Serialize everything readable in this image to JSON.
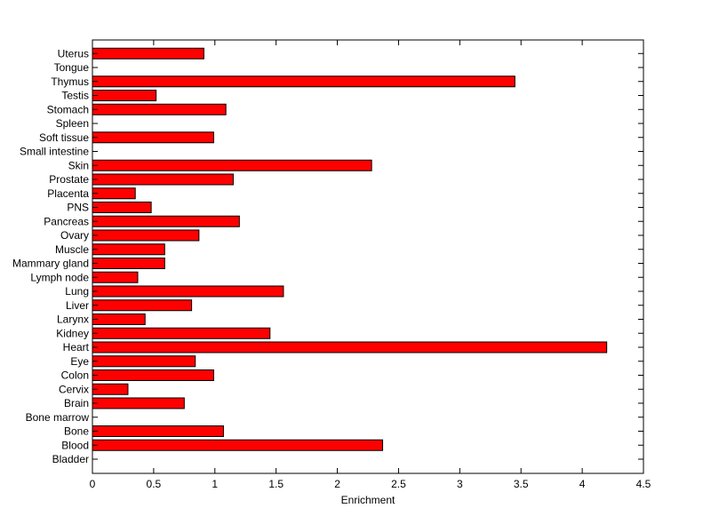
{
  "chart_data": {
    "type": "bar",
    "orientation": "horizontal",
    "title": "",
    "xlabel": "Enrichment",
    "ylabel": "",
    "xlim": [
      0,
      4.5
    ],
    "xticks": [
      "0",
      "0.5",
      "1",
      "1.5",
      "2",
      "2.5",
      "3",
      "3.5",
      "4",
      "4.5"
    ],
    "grid": false,
    "legend": "none",
    "bar_color": "#ff0000",
    "edge_color": "#000000",
    "categories": [
      "Bladder",
      "Blood",
      "Bone",
      "Bone marrow",
      "Brain",
      "Cervix",
      "Colon",
      "Eye",
      "Heart",
      "Kidney",
      "Larynx",
      "Liver",
      "Lung",
      "Lymph node",
      "Mammary gland",
      "Muscle",
      "Ovary",
      "Pancreas",
      "PNS",
      "Placenta",
      "Prostate",
      "Skin",
      "Small intestine",
      "Soft tissue",
      "Spleen",
      "Stomach",
      "Testis",
      "Thymus",
      "Tongue",
      "Uterus"
    ],
    "values": [
      0,
      2.37,
      1.07,
      0,
      0.75,
      0.29,
      0.99,
      0.84,
      4.2,
      1.45,
      0.43,
      0.81,
      1.56,
      0.37,
      0.59,
      0.59,
      0.87,
      1.2,
      0.48,
      0.35,
      1.15,
      2.28,
      0,
      0.99,
      0,
      1.09,
      0.52,
      3.45,
      0,
      0.91
    ]
  }
}
